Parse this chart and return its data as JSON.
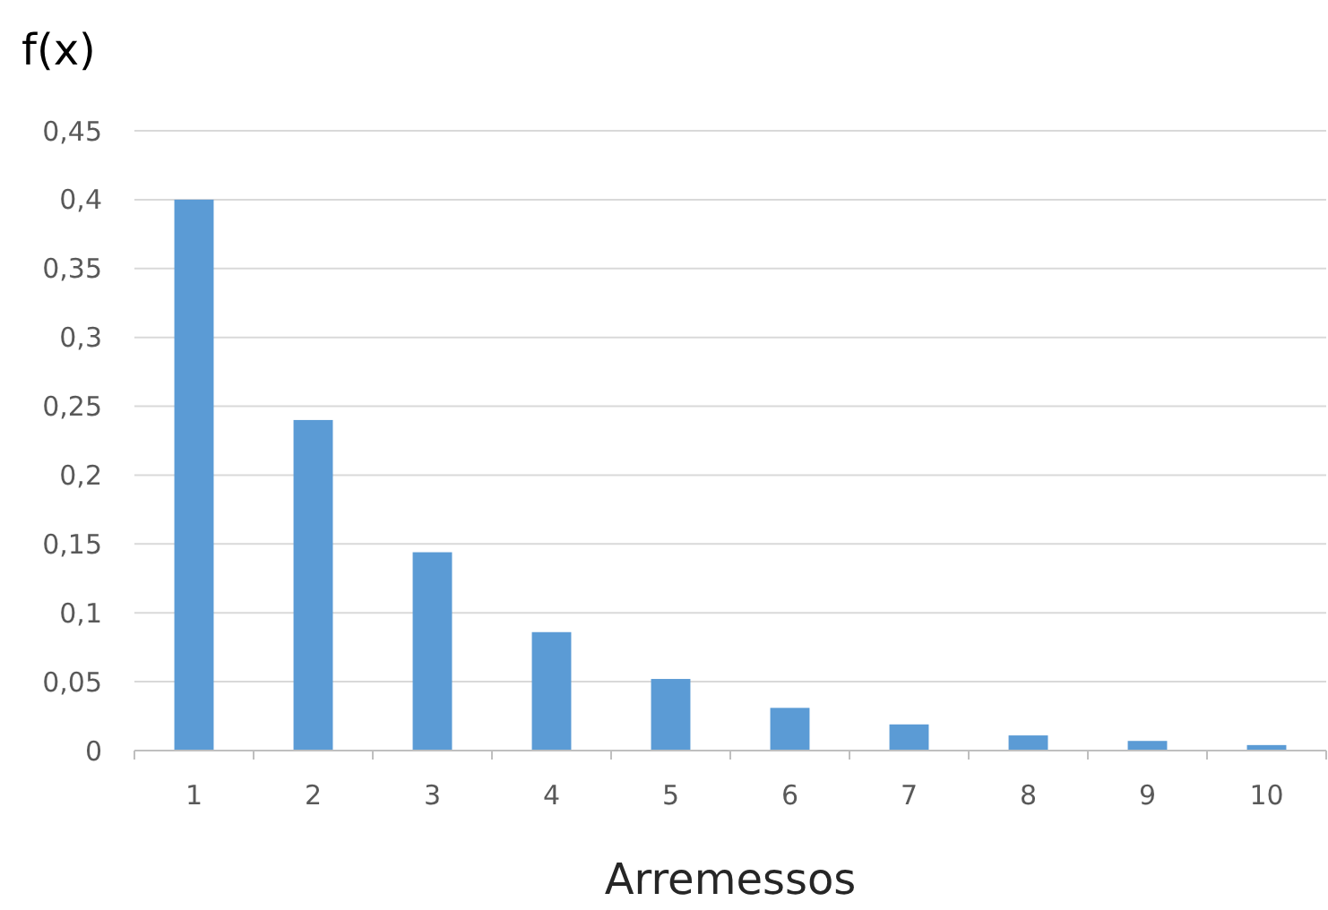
{
  "chart_data": {
    "type": "bar",
    "xlabel": "Arremessos",
    "ylabel": "f(x)",
    "categories": [
      "1",
      "2",
      "3",
      "4",
      "5",
      "6",
      "7",
      "8",
      "9",
      "10"
    ],
    "values": [
      0.4,
      0.24,
      0.144,
      0.086,
      0.052,
      0.031,
      0.019,
      0.011,
      0.007,
      0.004
    ],
    "color": "#5b9bd5",
    "ylim": [
      0,
      0.45
    ],
    "yticks": [
      0,
      {
        "value": 0.05,
        "label": "0,05"
      },
      {
        "value": 0.1,
        "label": "0,1"
      },
      {
        "value": 0.15,
        "label": "0,15"
      },
      {
        "value": 0.2,
        "label": "0,2"
      },
      {
        "value": 0.25,
        "label": "0,25"
      },
      {
        "value": 0.3,
        "label": "0,3"
      },
      {
        "value": 0.35,
        "label": "0,35"
      },
      {
        "value": 0.4,
        "label": "0,4"
      },
      {
        "value": 0.45,
        "label": "0,45"
      }
    ],
    "grid": "y"
  }
}
